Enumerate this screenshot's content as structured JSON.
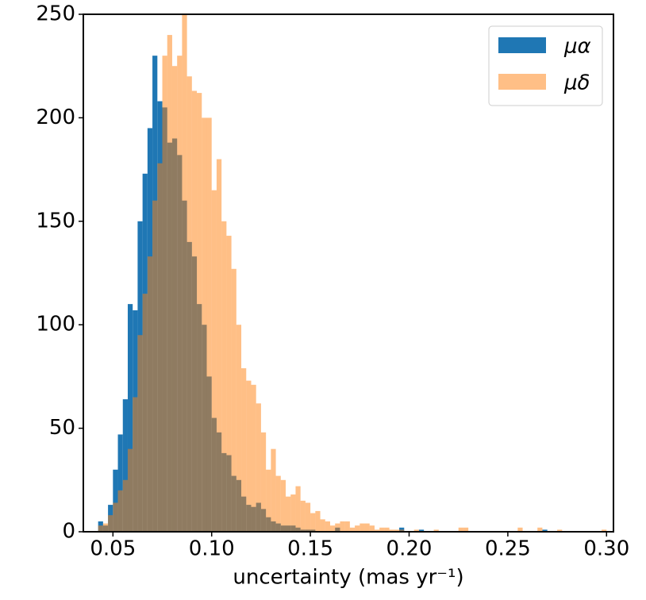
{
  "chart_data": {
    "type": "histogram",
    "xlabel": "uncertainty (mas yr⁻¹)",
    "bins": [
      0.0375,
      0.04,
      0.0425,
      0.045,
      0.0475,
      0.05,
      0.0525,
      0.055,
      0.0575,
      0.06,
      0.0625,
      0.065,
      0.0675,
      0.07,
      0.0725,
      0.075,
      0.0775,
      0.08,
      0.0825,
      0.085,
      0.0875,
      0.09,
      0.0925,
      0.095,
      0.0975,
      0.1,
      0.1025,
      0.105,
      0.1075,
      0.11,
      0.1125,
      0.115,
      0.1175,
      0.12,
      0.1225,
      0.125,
      0.1275,
      0.13,
      0.1325,
      0.135,
      0.1375,
      0.14,
      0.1425,
      0.145,
      0.1475,
      0.15,
      0.1525,
      0.155,
      0.1575,
      0.16,
      0.1625,
      0.165,
      0.1675,
      0.17,
      0.1725,
      0.175,
      0.1775,
      0.18,
      0.1825,
      0.185,
      0.1875,
      0.19,
      0.1925,
      0.195,
      0.1975,
      0.2,
      0.2025,
      0.205,
      0.2075,
      0.21,
      0.2125,
      0.215,
      0.2175,
      0.22,
      0.2225,
      0.225,
      0.2275,
      0.23,
      0.2325,
      0.235,
      0.2375,
      0.24,
      0.2425,
      0.245,
      0.2475,
      0.25,
      0.2525,
      0.255,
      0.2575,
      0.26,
      0.2625,
      0.265,
      0.2675,
      0.27,
      0.2725,
      0.275,
      0.2775,
      0.28,
      0.2825,
      0.285,
      0.2875,
      0.29,
      0.2925,
      0.295,
      0.2975,
      0.3
    ],
    "series": [
      {
        "name": "μα",
        "color": "#1f77b4",
        "opacity": 1,
        "values": [
          0,
          0,
          5,
          3,
          13,
          30,
          47,
          64,
          110,
          107,
          150,
          173,
          195,
          230,
          208,
          205,
          188,
          190,
          182,
          160,
          140,
          133,
          110,
          100,
          75,
          55,
          48,
          38,
          37,
          27,
          25,
          17,
          13,
          12,
          14,
          11,
          7,
          5,
          4,
          3,
          3,
          3,
          2,
          1,
          1,
          1,
          0,
          0,
          0,
          0,
          2,
          0,
          0,
          0,
          0,
          0,
          0,
          0,
          0,
          0,
          0,
          0,
          0,
          2,
          0,
          0,
          0,
          1,
          0,
          0,
          0,
          0,
          0,
          0,
          0,
          0,
          0,
          0,
          0,
          0,
          0,
          0,
          0,
          0,
          0,
          0,
          0,
          0,
          0,
          0,
          0,
          0,
          1,
          0,
          0,
          0,
          0,
          0,
          0,
          0,
          0,
          0,
          0,
          0,
          0
        ]
      },
      {
        "name": "μδ",
        "color": "#ff7f0e",
        "opacity": 0.5,
        "values": [
          0,
          0,
          3,
          4,
          8,
          14,
          20,
          25,
          40,
          65,
          95,
          115,
          133,
          160,
          178,
          230,
          240,
          225,
          230,
          250,
          220,
          213,
          212,
          200,
          200,
          165,
          180,
          150,
          143,
          127,
          100,
          79,
          73,
          71,
          62,
          48,
          30,
          40,
          27,
          25,
          17,
          18,
          22,
          15,
          14,
          9,
          10,
          6,
          5,
          3,
          4,
          5,
          5,
          2,
          3,
          4,
          4,
          3,
          1,
          2,
          2,
          1,
          1,
          1,
          0,
          0,
          1,
          0,
          0,
          0,
          1,
          0,
          0,
          0,
          0,
          2,
          2,
          0,
          0,
          0,
          0,
          0,
          0,
          0,
          0,
          0,
          0,
          2,
          0,
          0,
          0,
          2,
          0,
          0,
          0,
          1,
          0,
          0,
          0,
          0,
          0,
          0,
          0,
          0,
          1
        ]
      }
    ],
    "xlim": [
      0.035,
      0.3035
    ],
    "ylim": [
      0,
      250
    ],
    "xticks": [
      0.05,
      {
        "value": 0.1,
        "label": "0.10"
      },
      0.15,
      {
        "value": 0.2,
        "label": "0.20"
      },
      0.25,
      {
        "value": 0.3,
        "label": "0.30"
      }
    ],
    "yticks": [
      0,
      50,
      100,
      150,
      200,
      250
    ],
    "legend": "upper right"
  }
}
